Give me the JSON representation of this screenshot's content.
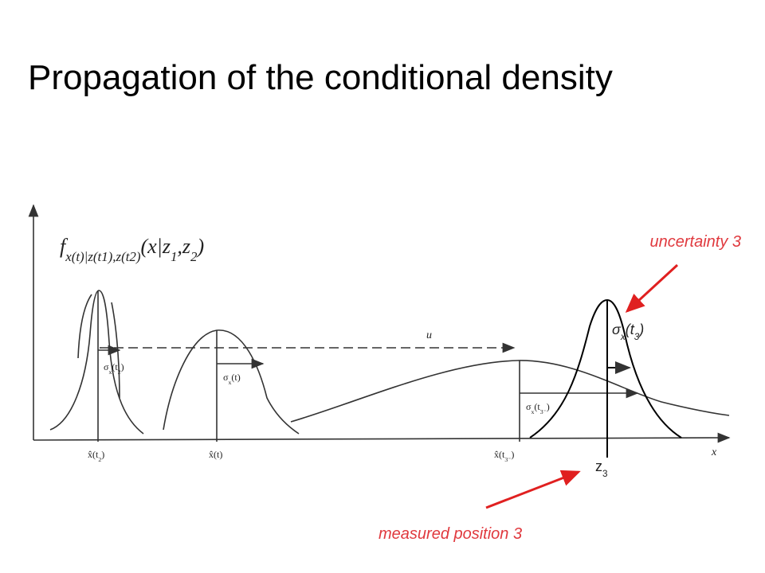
{
  "title": "Propagation of the conditional density",
  "annotations": {
    "uncertainty": "uncertainty 3",
    "measured": "measured position 3"
  },
  "labels": [
    {
      "segments": [
        "f",
        "x(t)|z(t1),z(t2)",
        "(x|z",
        "1",
        ",z",
        "2",
        ")"
      ]
    },
    {
      "segments": [
        "u"
      ]
    },
    {
      "segments": [
        "σ",
        "x",
        "(t",
        "2",
        ")"
      ]
    },
    {
      "segments": [
        "σ",
        "x",
        "(t)"
      ]
    },
    {
      "segments": [
        "σ",
        "x",
        "(t",
        "3⁻",
        ")"
      ]
    },
    {
      "segments": [
        "x̂(t",
        "2",
        ")"
      ]
    },
    {
      "segments": [
        "x̂(t)"
      ]
    },
    {
      "segments": [
        "x̂(t",
        "3⁻",
        ")"
      ]
    },
    {
      "segments": [
        "x"
      ]
    },
    {
      "segments": [
        "σ",
        "x",
        "(t",
        "3",
        ")"
      ]
    },
    {
      "segments": [
        "z",
        "3"
      ]
    }
  ]
}
